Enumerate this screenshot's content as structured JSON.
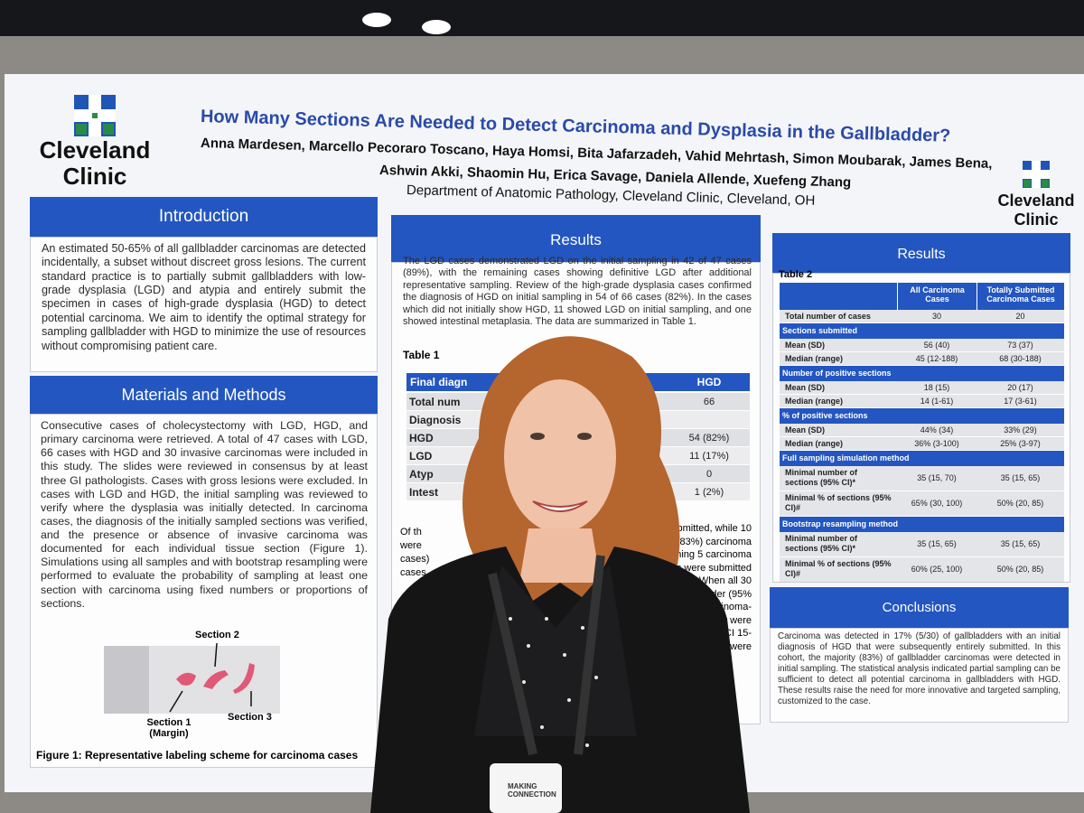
{
  "poster": {
    "logo_left": {
      "line1": "Cleveland",
      "line2": "Clinic"
    },
    "logo_right": {
      "line1": "Cleveland",
      "line2": "Clinic"
    },
    "title": "How Many Sections Are Needed to Detect Carcinoma and Dysplasia in the Gallbladder?",
    "authors": [
      "Anna Mardesen, Marcello Pecoraro Toscano, Haya Homsi, Bita Jafarzadeh, Vahid Mehrtash, Simon Moubarak, James Bena,",
      "Ashwin Akki, Shaomin Hu, Erica Savage, Daniela Allende, Xuefeng Zhang"
    ],
    "department": "Department of Anatomic Pathology, Cleveland Clinic, Cleveland, OH",
    "introduction": {
      "heading": "Introduction",
      "text": "An estimated 50-65% of all gallbladder carcinomas are detected incidentally, a subset without discreet gross lesions. The current standard practice is to partially submit gallbladders with low-grade dysplasia (LGD) and atypia and entirely submit the specimen in cases of high-grade dysplasia (HGD) to detect potential carcinoma. We aim to identify the optimal strategy for sampling gallbladder with HGD to minimize the use of resources without compromising patient care."
    },
    "methods": {
      "heading": "Materials and Methods",
      "text": "Consecutive cases of cholecystectomy with LGD, HGD, and primary carcinoma were retrieved. A total of 47 cases with LGD, 66 cases with HGD and 30 invasive carcinomas were included in this study. The slides were reviewed in consensus by at least three GI pathologists. Cases with gross lesions were excluded. In cases with LGD and HGD, the initial sampling was reviewed to verify where the dysplasia was initially detected. In carcinoma cases, the diagnosis of the initially sampled sections was verified, and the presence or absence of invasive carcinoma was documented for each individual tissue section (Figure 1). Simulations using all samples and with bootstrap resampling were performed to evaluate the probability of sampling at least one section with carcinoma using fixed numbers or proportions of sections."
    },
    "figure": {
      "section2": "Section 2",
      "section1": "Section 1",
      "margin": "(Margin)",
      "section3": "Section 3",
      "caption": "Figure 1: Representative labeling scheme for carcinoma cases"
    },
    "results_mid": {
      "heading": "Results",
      "text": "The LGD cases demonstrated LGD on the initial sampling in 42 of 47 cases (89%), with the remaining cases showing definitive LGD after additional representative sampling. Review of the high-grade dysplasia cases confirmed the diagnosis of HGD on initial sampling in 54 of 66 cases (82%). In the cases which did not initially show HGD, 11 showed LGD on initial sampling, and one showed intestinal metaplasia. The data are summarized in Table 1.",
      "table_label": "Table 1",
      "table": {
        "header": [
          "Final diagn",
          "HGD"
        ],
        "rows": [
          [
            "Total num",
            "66"
          ],
          [
            "Diagnosis"
          ],
          [
            "HGD",
            "54 (82%)"
          ],
          [
            "LGD",
            "11 (17%)"
          ],
          [
            "Atyp",
            "0"
          ],
          [
            "Intest",
            "1 (2%)"
          ]
        ]
      },
      "fragments_left": [
        "Of th",
        "were",
        "cases)",
        "cases"
      ],
      "fragments_right": [
        "ely submitted, while 10",
        "(83%) carcinoma",
        "emaining 5 carcinoma",
        "ections were submitted",
        "When all 30",
        "adder (95%",
        "carcinoma-",
        "that were",
        "CI 15-",
        "ata were"
      ]
    },
    "results_right": {
      "heading": "Results",
      "table_label": "Table 2",
      "table": {
        "header": [
          "All Carcinoma Cases",
          "Totally Submitted Carcinoma Cases"
        ],
        "rows": [
          [
            "Total number of cases",
            "30",
            "20"
          ],
          [
            "Sections submitted"
          ],
          [
            "Mean (SD)",
            "56 (40)",
            "73 (37)"
          ],
          [
            "Median (range)",
            "45 (12-188)",
            "68 (30-188)"
          ],
          [
            "Number of positive sections"
          ],
          [
            "Mean (SD)",
            "18 (15)",
            "20 (17)"
          ],
          [
            "Median (range)",
            "14 (1-61)",
            "17 (3-61)"
          ],
          [
            "% of positive sections"
          ],
          [
            "Mean (SD)",
            "44% (34)",
            "33% (29)"
          ],
          [
            "Median (range)",
            "36% (3-100)",
            "25% (3-97)"
          ],
          [
            "Full sampling simulation method"
          ],
          [
            "Minimal number of sections (95% CI)*",
            "35 (15, 70)",
            "35 (15, 65)"
          ],
          [
            "Minimal % of sections (95% CI)#",
            "65% (30, 100)",
            "50% (20, 85)"
          ],
          [
            "Bootstrap resampling method"
          ],
          [
            "Minimal number of sections (95% CI)*",
            "35 (15, 65)",
            "35 (15, 65)"
          ],
          [
            "Minimal % of sections (95% CI)#",
            "60% (25, 100)",
            "50% (20, 85)"
          ]
        ]
      }
    },
    "conclusions": {
      "heading": "Conclusions",
      "text": "Carcinoma was detected in 17% (5/30) of gallbladders with an initial diagnosis of HGD that were subsequently entirely submitted. In this cohort, the majority (83%) of gallbladder carcinomas were detected in initial sampling. The statistical analysis indicated partial sampling can be sufficient to detect all potential carcinoma in gallbladders with HGD. These results raise the need for more innovative and targeted sampling, customized to the case."
    }
  },
  "badge": "MAKING CONNECTION"
}
